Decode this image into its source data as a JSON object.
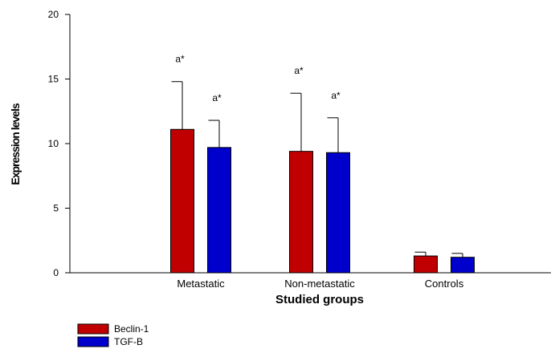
{
  "chart_data": {
    "type": "bar",
    "categories": [
      "Metastatic",
      "Non-metastatic",
      "Controls"
    ],
    "series": [
      {
        "name": "Beclin-1",
        "color": "#c00000",
        "values": [
          11.1,
          9.4,
          1.3
        ],
        "error": [
          3.7,
          4.5,
          0.3
        ],
        "annotations": [
          "a*",
          "a*",
          ""
        ]
      },
      {
        "name": "TGF-B",
        "color": "#0000cc",
        "values": [
          9.7,
          9.3,
          1.2
        ],
        "error": [
          2.1,
          2.7,
          0.3
        ],
        "annotations": [
          "a*",
          "a*",
          ""
        ]
      }
    ],
    "xlabel": "Studied groups",
    "ylabel": "Expression levels",
    "ylim": [
      0,
      20
    ],
    "yticks": [
      0,
      5,
      10,
      15,
      20
    ],
    "grid": false,
    "legend_position": "bottom-left"
  }
}
